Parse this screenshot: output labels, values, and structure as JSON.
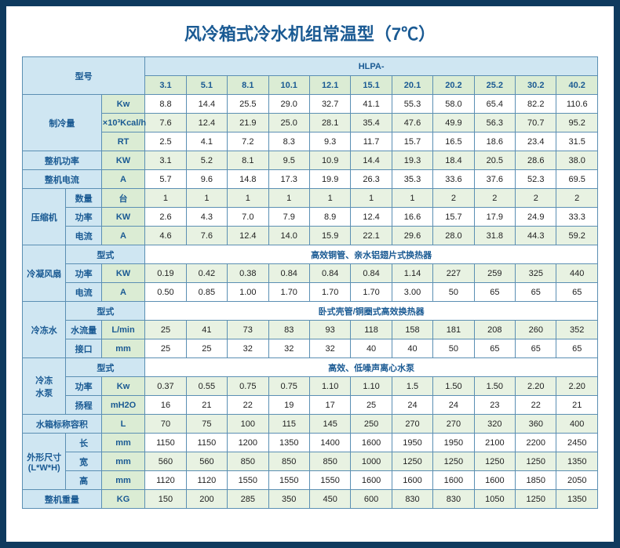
{
  "title": "风冷箱式冷水机组常温型（7℃）",
  "header": {
    "model_label": "型号",
    "series_label": "HLPA-",
    "models": [
      "3.1",
      "5.1",
      "8.1",
      "10.1",
      "12.1",
      "15.1",
      "20.1",
      "20.2",
      "25.2",
      "30.2",
      "40.2"
    ]
  },
  "groups": [
    {
      "label": "制冷量",
      "rows": [
        {
          "sub": "Kw",
          "vals": [
            "8.8",
            "14.4",
            "25.5",
            "29.0",
            "32.7",
            "41.1",
            "55.3",
            "58.0",
            "65.4",
            "82.2",
            "110.6"
          ],
          "cls": "white"
        },
        {
          "sub": "×10³Kcal/h",
          "vals": [
            "7.6",
            "12.4",
            "21.9",
            "25.0",
            "28.1",
            "35.4",
            "47.6",
            "49.9",
            "56.3",
            "70.7",
            "95.2"
          ],
          "cls": "green"
        },
        {
          "sub": "RT",
          "vals": [
            "2.5",
            "4.1",
            "7.2",
            "8.3",
            "9.3",
            "11.7",
            "15.7",
            "16.5",
            "18.6",
            "23.4",
            "31.5"
          ],
          "cls": "white"
        }
      ]
    },
    {
      "label": "整机功率",
      "rows": [
        {
          "sub": "KW",
          "vals": [
            "3.1",
            "5.2",
            "8.1",
            "9.5",
            "10.9",
            "14.4",
            "19.3",
            "18.4",
            "20.5",
            "28.6",
            "38.0"
          ],
          "cls": "green"
        }
      ]
    },
    {
      "label": "整机电流",
      "rows": [
        {
          "sub": "A",
          "vals": [
            "5.7",
            "9.6",
            "14.8",
            "17.3",
            "19.9",
            "26.3",
            "35.3",
            "33.6",
            "37.6",
            "52.3",
            "69.5"
          ],
          "cls": "white"
        }
      ]
    },
    {
      "label": "压缩机",
      "rows": [
        {
          "sub": "数量",
          "unit": "台",
          "vals": [
            "1",
            "1",
            "1",
            "1",
            "1",
            "1",
            "1",
            "2",
            "2",
            "2",
            "2"
          ],
          "cls": "green"
        },
        {
          "sub": "功率",
          "unit": "KW",
          "vals": [
            "2.6",
            "4.3",
            "7.0",
            "7.9",
            "8.9",
            "12.4",
            "16.6",
            "15.7",
            "17.9",
            "24.9",
            "33.3"
          ],
          "cls": "white"
        },
        {
          "sub": "电流",
          "unit": "A",
          "vals": [
            "4.6",
            "7.6",
            "12.4",
            "14.0",
            "15.9",
            "22.1",
            "29.6",
            "28.0",
            "31.8",
            "44.3",
            "59.2"
          ],
          "cls": "green"
        }
      ]
    },
    {
      "label": "冷凝风扇",
      "rows": [
        {
          "sub": "型式",
          "span": "高效铜管、亲水铝翅片式换热器"
        },
        {
          "sub": "功率",
          "unit": "KW",
          "vals": [
            "0.19",
            "0.42",
            "0.38",
            "0.84",
            "0.84",
            "0.84",
            "1.14",
            "227",
            "259",
            "325",
            "440"
          ],
          "cls": "green"
        },
        {
          "sub": "电流",
          "unit": "A",
          "vals": [
            "0.50",
            "0.85",
            "1.00",
            "1.70",
            "1.70",
            "1.70",
            "3.00",
            "50",
            "65",
            "65",
            "65"
          ],
          "cls": "white"
        }
      ]
    },
    {
      "label": "冷冻水",
      "rows": [
        {
          "sub": "型式",
          "span": "卧式壳管/铜圈式高效换热器"
        },
        {
          "sub": "水流量",
          "unit": "L/min",
          "vals": [
            "25",
            "41",
            "73",
            "83",
            "93",
            "118",
            "158",
            "181",
            "208",
            "260",
            "352"
          ],
          "cls": "green"
        },
        {
          "sub": "接口",
          "unit": "mm",
          "vals": [
            "25",
            "25",
            "32",
            "32",
            "32",
            "40",
            "40",
            "50",
            "65",
            "65",
            "65"
          ],
          "cls": "white"
        }
      ]
    },
    {
      "label": "冷冻\n水泵",
      "rows": [
        {
          "sub": "型式",
          "span": "高效、低噪声离心水泵"
        },
        {
          "sub": "功率",
          "unit": "Kw",
          "vals": [
            "0.37",
            "0.55",
            "0.75",
            "0.75",
            "1.10",
            "1.10",
            "1.5",
            "1.50",
            "1.50",
            "2.20",
            "2.20"
          ],
          "cls": "green"
        },
        {
          "sub": "扬程",
          "unit": "mH2O",
          "vals": [
            "16",
            "21",
            "22",
            "19",
            "17",
            "25",
            "24",
            "24",
            "23",
            "22",
            "21"
          ],
          "cls": "white"
        }
      ]
    },
    {
      "label": "水箱标称容积",
      "rows": [
        {
          "sub": "L",
          "vals": [
            "70",
            "75",
            "100",
            "115",
            "145",
            "250",
            "270",
            "270",
            "320",
            "360",
            "400"
          ],
          "cls": "green"
        }
      ]
    },
    {
      "label": "外形尺寸\n(L*W*H)",
      "rows": [
        {
          "sub": "长",
          "unit": "mm",
          "vals": [
            "1150",
            "1150",
            "1200",
            "1350",
            "1400",
            "1600",
            "1950",
            "1950",
            "2100",
            "2200",
            "2450"
          ],
          "cls": "white"
        },
        {
          "sub": "宽",
          "unit": "mm",
          "vals": [
            "560",
            "560",
            "850",
            "850",
            "850",
            "1000",
            "1250",
            "1250",
            "1250",
            "1250",
            "1350"
          ],
          "cls": "green"
        },
        {
          "sub": "高",
          "unit": "mm",
          "vals": [
            "1120",
            "1120",
            "1550",
            "1550",
            "1550",
            "1600",
            "1600",
            "1600",
            "1600",
            "1850",
            "2050"
          ],
          "cls": "white"
        }
      ]
    },
    {
      "label": "整机重量",
      "rows": [
        {
          "sub": "KG",
          "vals": [
            "150",
            "200",
            "285",
            "350",
            "450",
            "600",
            "830",
            "830",
            "1050",
            "1250",
            "1350"
          ],
          "cls": "green"
        }
      ]
    }
  ],
  "colors": {
    "border_outer": "#0e3a5e",
    "border_cell": "#5b8fb3",
    "bg_blue": "#cfe6f2",
    "bg_green": "#dbecd4",
    "bg_green_light": "#e8f2e2",
    "text_header": "#1a5a93"
  }
}
